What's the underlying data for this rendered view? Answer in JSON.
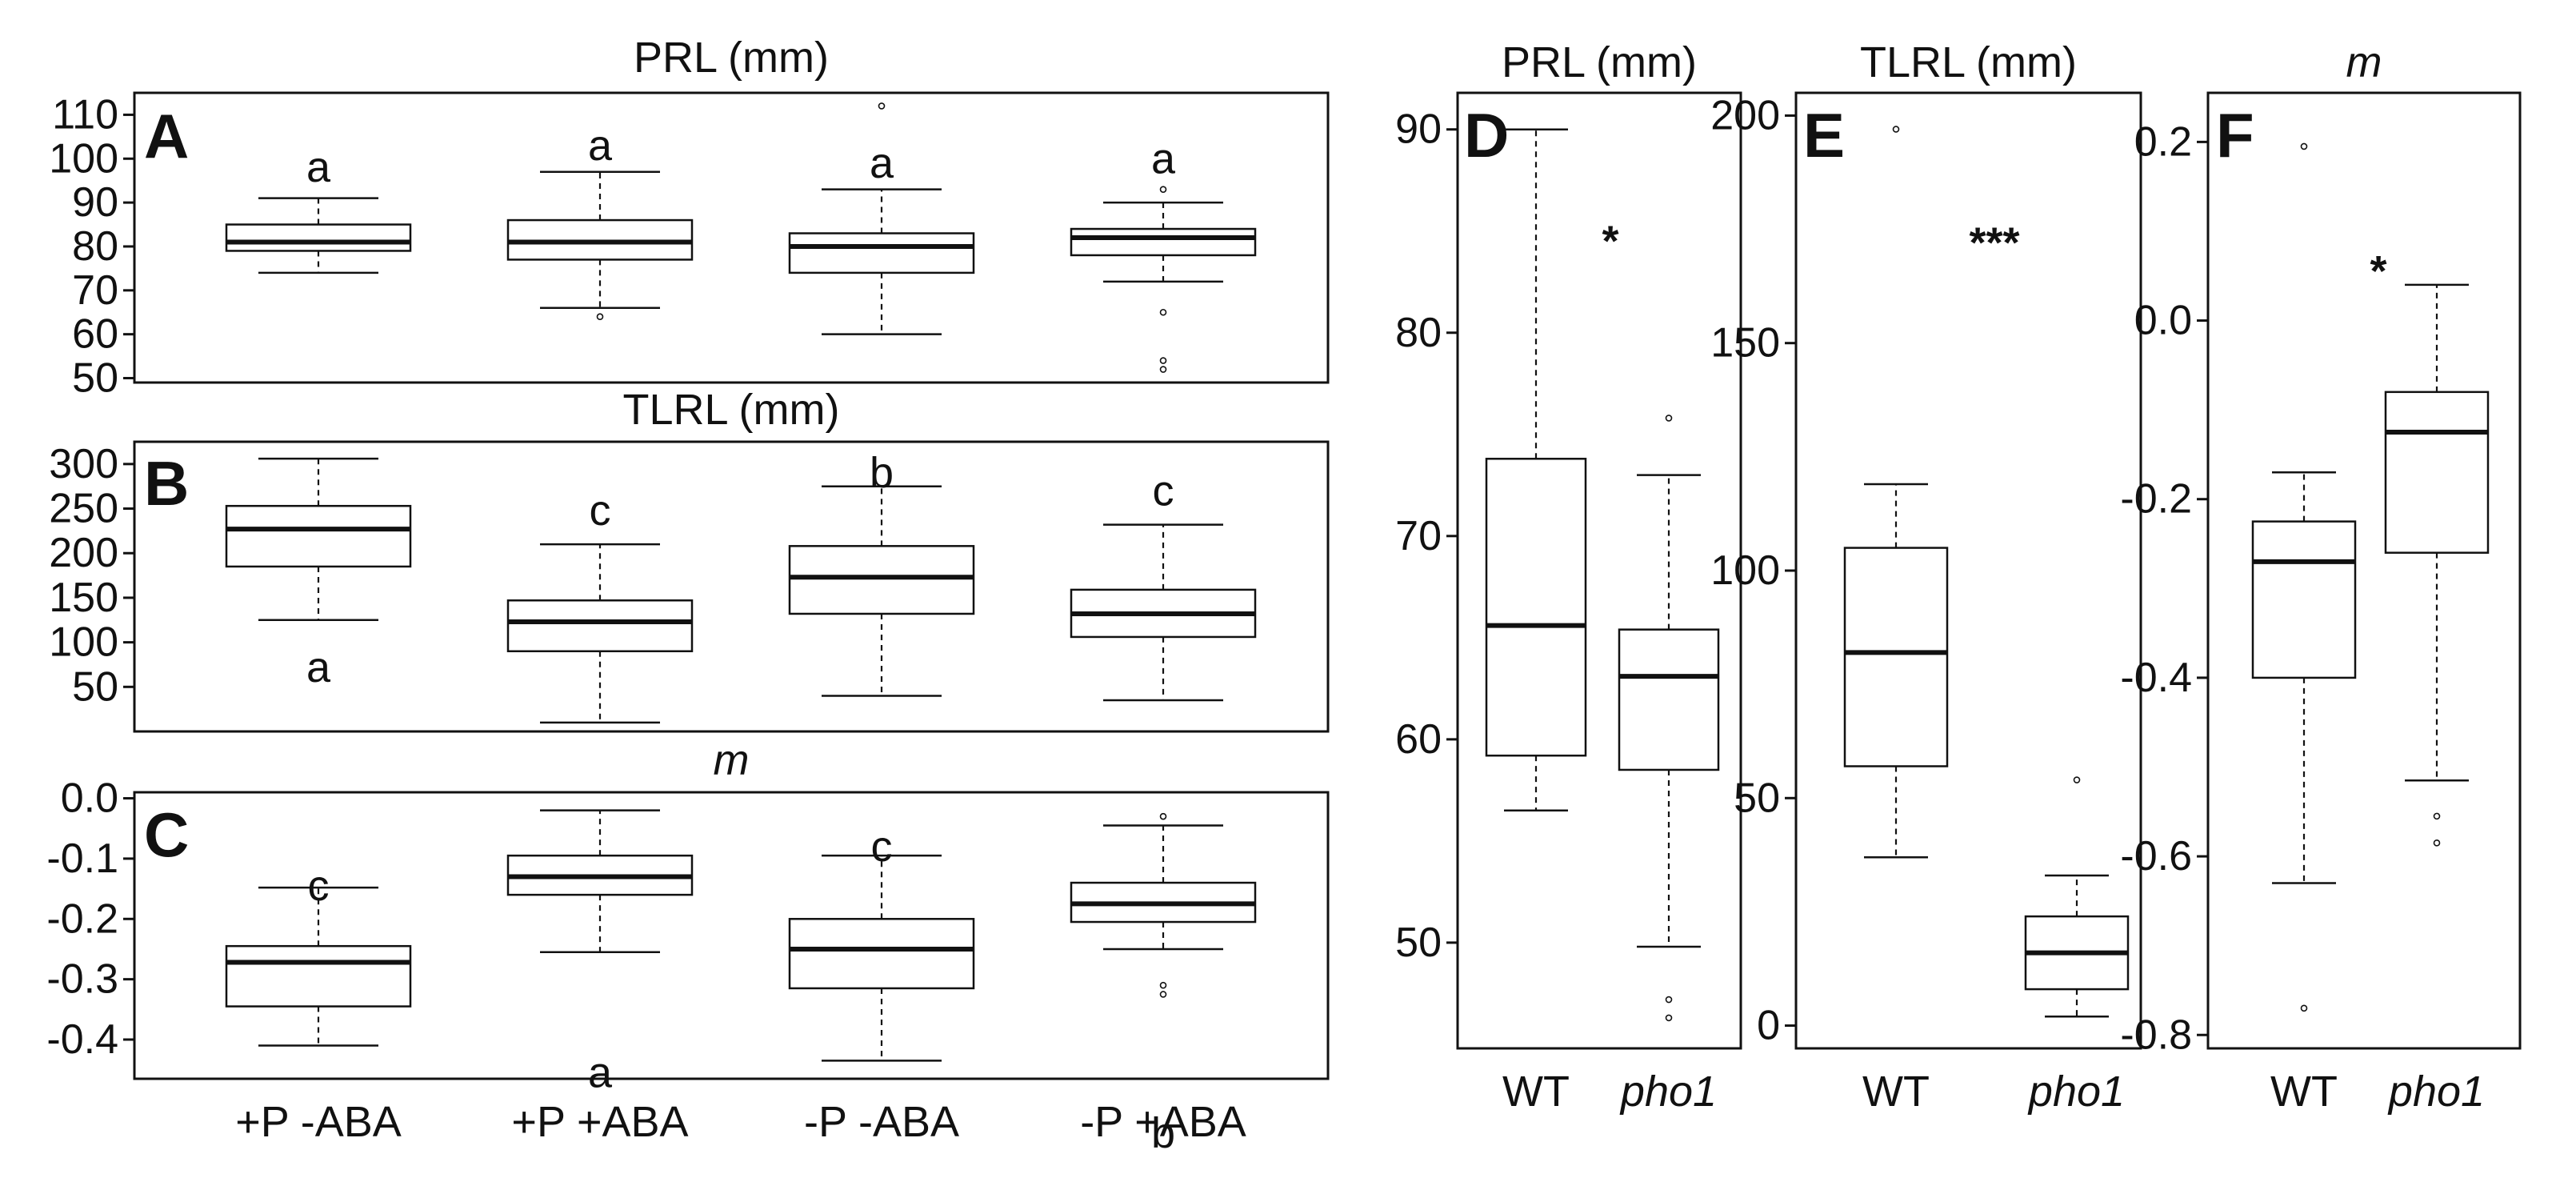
{
  "chart_data": [
    {
      "panel": "A",
      "type": "box",
      "title": "PRL (mm)",
      "title_italic": false,
      "categories": [
        "+P -ABA",
        "+P +ABA",
        "-P -ABA",
        "-P +ABA"
      ],
      "yticks": [
        "110",
        "100",
        "90",
        "80",
        "70",
        "60",
        "50"
      ],
      "ylim": [
        49,
        115
      ],
      "boxes": [
        {
          "min": 74,
          "q1": 79,
          "median": 81,
          "q3": 85,
          "max": 91,
          "outliers": []
        },
        {
          "min": 66,
          "q1": 77,
          "median": 81,
          "q3": 86,
          "max": 97,
          "outliers": [
            64
          ]
        },
        {
          "min": 60,
          "q1": 74,
          "median": 80,
          "q3": 83,
          "max": 93,
          "outliers": [
            112
          ]
        },
        {
          "min": 72,
          "q1": 78,
          "median": 82,
          "q3": 84,
          "max": 90,
          "outliers": [
            93,
            65,
            54,
            52
          ]
        }
      ],
      "labels": [
        {
          "text": "a",
          "y": 98
        },
        {
          "text": "a",
          "y": 103
        },
        {
          "text": "a",
          "y": 99
        },
        {
          "text": "a",
          "y": 100
        }
      ]
    },
    {
      "panel": "B",
      "type": "box",
      "title": "TLRL (mm)",
      "title_italic": false,
      "categories": [
        "+P -ABA",
        "+P +ABA",
        "-P -ABA",
        "-P +ABA"
      ],
      "yticks": [
        "300",
        "250",
        "200",
        "150",
        "100",
        "50"
      ],
      "ylim": [
        0,
        325
      ],
      "boxes": [
        {
          "min": 125,
          "q1": 185,
          "median": 227,
          "q3": 253,
          "max": 306,
          "outliers": []
        },
        {
          "min": 10,
          "q1": 90,
          "median": 123,
          "q3": 147,
          "max": 210,
          "outliers": []
        },
        {
          "min": 40,
          "q1": 132,
          "median": 173,
          "q3": 208,
          "max": 275,
          "outliers": []
        },
        {
          "min": 35,
          "q1": 106,
          "median": 132,
          "q3": 159,
          "max": 232,
          "outliers": []
        }
      ],
      "labels": [
        {
          "text": "a",
          "y": 72
        },
        {
          "text": "c",
          "y": 248
        },
        {
          "text": "b",
          "y": 290
        },
        {
          "text": "c",
          "y": 270
        }
      ]
    },
    {
      "panel": "C",
      "type": "box",
      "title": "m",
      "title_italic": true,
      "categories": [
        "+P -ABA",
        "+P +ABA",
        "-P -ABA",
        "-P +ABA"
      ],
      "yticks": [
        "0.0",
        "-0.1",
        "-0.2",
        "-0.3",
        "-0.4"
      ],
      "ylim": [
        -0.465,
        0.01
      ],
      "boxes": [
        {
          "min": -0.41,
          "q1": -0.345,
          "median": -0.272,
          "q3": -0.245,
          "max": -0.148,
          "outliers": []
        },
        {
          "min": -0.255,
          "q1": -0.16,
          "median": -0.13,
          "q3": -0.095,
          "max": -0.02,
          "outliers": []
        },
        {
          "min": -0.435,
          "q1": -0.315,
          "median": -0.25,
          "q3": -0.2,
          "max": -0.095,
          "outliers": []
        },
        {
          "min": -0.25,
          "q1": -0.205,
          "median": -0.175,
          "q3": -0.14,
          "max": -0.045,
          "outliers": [
            -0.03,
            -0.31,
            -0.325
          ]
        }
      ],
      "labels": [
        {
          "text": "c",
          "y": -0.145
        },
        {
          "text": "a",
          "y": -0.455
        },
        {
          "text": "c",
          "y": -0.08
        },
        {
          "text": "b",
          "y": -0.555
        }
      ]
    },
    {
      "panel": "D",
      "type": "box",
      "title": "PRL (mm)",
      "title_italic": false,
      "categories": [
        "WT",
        "pho1"
      ],
      "category_italic": [
        false,
        true
      ],
      "yticks": [
        "90",
        "80",
        "70",
        "60",
        "50"
      ],
      "ylim": [
        44.8,
        91.8
      ],
      "boxes": [
        {
          "min": 56.5,
          "q1": 59.2,
          "median": 65.6,
          "q3": 73.8,
          "max": 90,
          "outliers": []
        },
        {
          "min": 49.8,
          "q1": 58.5,
          "median": 63.1,
          "q3": 65.4,
          "max": 73,
          "outliers": [
            75.8,
            47.2,
            46.3
          ]
        }
      ],
      "significance": {
        "text": "*",
        "y": 84.5
      }
    },
    {
      "panel": "E",
      "type": "box",
      "title": "TLRL (mm)",
      "title_italic": false,
      "categories": [
        "WT",
        "pho1"
      ],
      "category_italic": [
        false,
        true
      ],
      "yticks": [
        "200",
        "150",
        "100",
        "50",
        "0"
      ],
      "ylim": [
        -5,
        205
      ],
      "boxes": [
        {
          "min": 37,
          "q1": 57,
          "median": 82,
          "q3": 105,
          "max": 119,
          "outliers": [
            197
          ]
        },
        {
          "min": 2,
          "q1": 8,
          "median": 16,
          "q3": 24,
          "max": 33,
          "outliers": [
            54
          ]
        }
      ],
      "significance": {
        "text": "***",
        "y": 172
      }
    },
    {
      "panel": "F",
      "type": "box",
      "title": "m",
      "title_italic": true,
      "categories": [
        "WT",
        "pho1"
      ],
      "category_italic": [
        false,
        true
      ],
      "yticks": [
        "0.2",
        "0.0",
        "-0.2",
        "-0.4",
        "-0.6",
        "-0.8"
      ],
      "ylim": [
        -0.815,
        0.255
      ],
      "boxes": [
        {
          "min": -0.63,
          "q1": -0.4,
          "median": -0.27,
          "q3": -0.225,
          "max": -0.17,
          "outliers": [
            0.195,
            -0.77
          ]
        },
        {
          "min": -0.515,
          "q1": -0.26,
          "median": -0.125,
          "q3": -0.08,
          "max": 0.04,
          "outliers": [
            -0.555,
            -0.585
          ]
        }
      ],
      "significance": {
        "text": "*",
        "y": 0.055
      }
    }
  ]
}
